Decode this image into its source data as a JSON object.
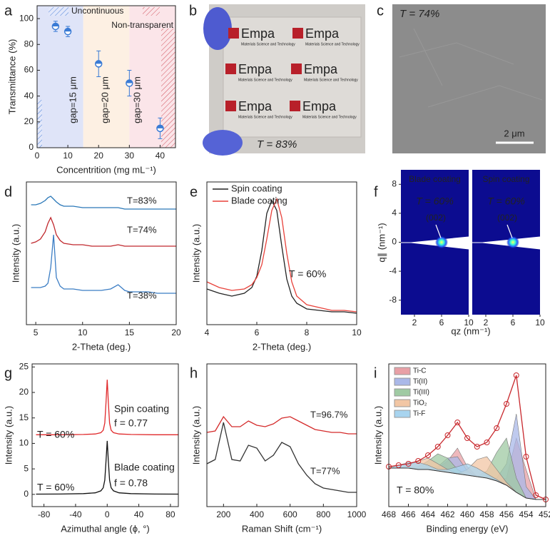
{
  "chart_data": [
    {
      "type": "scatter",
      "panel": "a",
      "xlabel": "Concentrition (mg mL⁻¹)",
      "ylabel": "Transmittance (%)",
      "xlim": [
        0,
        45
      ],
      "ylim": [
        0,
        110
      ],
      "xticks": [
        0,
        10,
        20,
        30,
        40
      ],
      "yticks": [
        0,
        20,
        40,
        60,
        80,
        100
      ],
      "color": "#3a7bd5",
      "x": [
        6,
        10,
        20,
        30,
        40
      ],
      "values": [
        94,
        90,
        65,
        50,
        15
      ],
      "errors": [
        4,
        4,
        10,
        10,
        8
      ],
      "regions": [
        {
          "from": 0,
          "to": 15,
          "color": "#dfe4f8",
          "label": "gap=15 μm",
          "label_color": "#2f6fc9"
        },
        {
          "from": 15,
          "to": 30,
          "color": "#fdf0e3",
          "label": "gap=20 μm",
          "label_color": "#c0731f"
        },
        {
          "from": 30,
          "to": 45,
          "color": "#fbe5e9",
          "label": "gap=30 μm",
          "label_color": "#8e1c6a"
        }
      ],
      "legend": [
        {
          "name": "Uncontinuous",
          "color": "#2f6fc9"
        },
        {
          "name": "Non-transparent",
          "color": "#c8282d"
        }
      ]
    },
    {
      "type": "photo",
      "panel": "b",
      "annotation": "T = 83%",
      "logos": [
        {
          "name": "Empa",
          "tagline": "Materials Science and Technology"
        },
        {
          "name": "Empa",
          "tagline": "Materials Science and Technology"
        },
        {
          "name": "Empa",
          "tagline": "Materials Science and Technology"
        },
        {
          "name": "Empa",
          "tagline": "Materials Science and Technology"
        },
        {
          "name": "Empa",
          "tagline": "Materials Science and Technology"
        },
        {
          "name": "Empa",
          "tagline": "Materials Science and Technology"
        }
      ]
    },
    {
      "type": "micrograph",
      "panel": "c",
      "annotation": "T = 74%",
      "scale_bar": "2 μm"
    },
    {
      "type": "line",
      "panel": "d",
      "xlabel": "2-Theta (deg.)",
      "ylabel": "Intensity (a.u.)",
      "xlim": [
        4,
        20
      ],
      "ylim": [
        0,
        1
      ],
      "xticks": [
        5,
        10,
        15,
        20
      ],
      "x": [
        4.5,
        5,
        5.5,
        6,
        6.3,
        6.6,
        6.9,
        7.2,
        7.6,
        8,
        9,
        10,
        11,
        12,
        13,
        13.8,
        14.5,
        15,
        16,
        17,
        18,
        19,
        20
      ],
      "series": [
        {
          "name": "T=83%",
          "color": "#2a78b8",
          "values": [
            0.84,
            0.84,
            0.85,
            0.87,
            0.89,
            0.9,
            0.88,
            0.86,
            0.84,
            0.83,
            0.83,
            0.82,
            0.82,
            0.82,
            0.82,
            0.82,
            0.81,
            0.81,
            0.81,
            0.81,
            0.81,
            0.81,
            0.81
          ]
        },
        {
          "name": "T=74%",
          "color": "#c0282d",
          "values": [
            0.57,
            0.58,
            0.6,
            0.65,
            0.71,
            0.75,
            0.7,
            0.63,
            0.59,
            0.57,
            0.56,
            0.56,
            0.55,
            0.55,
            0.55,
            0.56,
            0.55,
            0.55,
            0.55,
            0.55,
            0.55,
            0.55,
            0.55
          ]
        },
        {
          "name": "T=38%",
          "color": "#3b7dc4",
          "values": [
            0.26,
            0.26,
            0.26,
            0.27,
            0.29,
            0.4,
            0.63,
            0.33,
            0.27,
            0.25,
            0.25,
            0.24,
            0.24,
            0.24,
            0.25,
            0.28,
            0.24,
            0.23,
            0.23,
            0.23,
            0.22,
            0.22,
            0.22
          ]
        }
      ]
    },
    {
      "type": "line",
      "panel": "e",
      "xlabel": "2-Theta (deg.)",
      "ylabel": "Intensity (a.u.)",
      "xlim": [
        4,
        10
      ],
      "ylim": [
        0,
        1
      ],
      "xticks": [
        4,
        6,
        8,
        10
      ],
      "legend": "upper left",
      "annotations": [
        {
          "text": "T = 60%",
          "color": "#222"
        }
      ],
      "x": [
        4,
        4.5,
        5,
        5.5,
        5.8,
        6,
        6.2,
        6.4,
        6.6,
        6.8,
        7,
        7.2,
        7.4,
        7.6,
        8,
        8.5,
        9,
        9.5,
        10
      ],
      "series": [
        {
          "name": "Spin coating",
          "color": "#222222",
          "values": [
            0.25,
            0.22,
            0.2,
            0.22,
            0.26,
            0.34,
            0.52,
            0.78,
            0.87,
            0.8,
            0.55,
            0.32,
            0.2,
            0.15,
            0.11,
            0.1,
            0.09,
            0.09,
            0.08
          ]
        },
        {
          "name": "Blade coating",
          "color": "#e8413a",
          "values": [
            0.3,
            0.26,
            0.24,
            0.25,
            0.28,
            0.33,
            0.42,
            0.6,
            0.8,
            0.88,
            0.75,
            0.5,
            0.3,
            0.2,
            0.14,
            0.12,
            0.1,
            0.1,
            0.09
          ]
        }
      ]
    },
    {
      "type": "heatmap",
      "panel": "f",
      "xlabel": "qz (nm⁻¹)",
      "ylabel": "q∥ (nm⁻¹)",
      "xlim": [
        0,
        10
      ],
      "ylim": [
        -10,
        10
      ],
      "xticks": [
        2,
        6,
        10
      ],
      "yticks": [
        8,
        4,
        0,
        -4,
        -8
      ],
      "peak_q": [
        6,
        0
      ],
      "images": [
        {
          "title": "Blade coating",
          "annotation": "T = 60%",
          "peak_label": "(002)"
        },
        {
          "title": "Spin coating",
          "annotation": "T = 60%",
          "peak_label": "(002)"
        }
      ]
    },
    {
      "type": "line",
      "panel": "g",
      "xlabel": "Azimuthal angle (ϕ, °)",
      "ylabel": "Intensity (a.u.)",
      "xlim": [
        -95,
        90
      ],
      "ylim": [
        -2.4,
        25.6
      ],
      "xticks": [
        -80,
        -40,
        0,
        40,
        80
      ],
      "yticks": [
        0,
        5,
        10,
        15,
        20,
        25
      ],
      "x": [
        -90,
        -60,
        -30,
        -15,
        -8,
        -5,
        -3,
        -1.5,
        0,
        1.5,
        3,
        5,
        8,
        15,
        30,
        60,
        90
      ],
      "series": [
        {
          "color": "#e0282a",
          "values": [
            11.7,
            11.7,
            11.75,
            11.85,
            12.1,
            12.6,
            14,
            18,
            22.5,
            18,
            14,
            12.6,
            12.1,
            11.85,
            11.75,
            11.7,
            11.7
          ]
        },
        {
          "color": "#111111",
          "values": [
            0.05,
            0.07,
            0.15,
            0.3,
            0.7,
            1.3,
            2.8,
            6.5,
            10.5,
            6.5,
            2.8,
            1.3,
            0.7,
            0.3,
            0.15,
            0.07,
            0.05
          ]
        }
      ],
      "annotations": [
        {
          "text": "Spin coating",
          "color": "#d42a2a"
        },
        {
          "text": "f = 0.77",
          "color": "#d42a2a"
        },
        {
          "text": "T = 60%",
          "color": "#222"
        },
        {
          "text": "Blade coating",
          "color": "#222"
        },
        {
          "text": "f = 0.78",
          "color": "#222"
        },
        {
          "text": "T = 60%",
          "color": "#222"
        }
      ]
    },
    {
      "type": "line",
      "panel": "h",
      "xlabel": "Raman Shift (cm⁻¹)",
      "ylabel": "Intensity (a.u.)",
      "xlim": [
        100,
        1000
      ],
      "ylim": [
        0,
        1
      ],
      "xticks": [
        200,
        400,
        600,
        800,
        1000
      ],
      "x": [
        100,
        150,
        200,
        250,
        300,
        350,
        400,
        450,
        500,
        550,
        600,
        650,
        700,
        750,
        800,
        850,
        900,
        950,
        1000
      ],
      "series": [
        {
          "name": "T=96.7%",
          "color": "#d42a2a",
          "values": [
            0.52,
            0.53,
            0.63,
            0.56,
            0.56,
            0.6,
            0.57,
            0.56,
            0.58,
            0.62,
            0.63,
            0.6,
            0.57,
            0.54,
            0.53,
            0.52,
            0.52,
            0.51,
            0.51
          ]
        },
        {
          "name": "T=77%",
          "color": "#333333",
          "values": [
            0.3,
            0.33,
            0.59,
            0.33,
            0.32,
            0.43,
            0.41,
            0.32,
            0.36,
            0.45,
            0.42,
            0.3,
            0.22,
            0.16,
            0.13,
            0.12,
            0.11,
            0.1,
            0.1
          ]
        }
      ]
    },
    {
      "type": "area",
      "panel": "i",
      "xlabel": "Binding energy (eV)",
      "ylabel": "Intensity (a.u.)",
      "xlim": [
        468,
        452
      ],
      "ylim": [
        0,
        1
      ],
      "xticks": [
        468,
        466,
        464,
        462,
        460,
        458,
        456,
        454,
        452
      ],
      "annotations": [
        {
          "text": "T = 80%",
          "color": "#222"
        }
      ],
      "x": [
        468,
        467,
        466,
        465,
        464,
        463,
        462,
        461,
        460,
        459,
        458,
        457,
        456,
        455,
        454,
        453,
        452
      ],
      "background": [
        0.27,
        0.27,
        0.27,
        0.26,
        0.26,
        0.25,
        0.24,
        0.23,
        0.22,
        0.21,
        0.2,
        0.18,
        0.15,
        0.1,
        0.06,
        0.05,
        0.05
      ],
      "envelope": {
        "color": "#c8282d",
        "values": [
          0.28,
          0.29,
          0.3,
          0.32,
          0.36,
          0.42,
          0.5,
          0.59,
          0.48,
          0.42,
          0.45,
          0.55,
          0.72,
          0.92,
          0.35,
          0.08,
          0.05
        ]
      },
      "series": [
        {
          "name": "Ti-C",
          "color": "#e8a0a6",
          "values": [
            0,
            0,
            0,
            0,
            0,
            0.02,
            0.08,
            0.18,
            0.06,
            0,
            0,
            0,
            0.05,
            0.38,
            0.2,
            0,
            0
          ]
        },
        {
          "name": "Ti(II)",
          "color": "#aab8e8",
          "values": [
            0,
            0,
            0,
            0,
            0,
            0.03,
            0.1,
            0.12,
            0.03,
            0,
            0,
            0.02,
            0.15,
            0.55,
            0.08,
            0,
            0
          ]
        },
        {
          "name": "Ti(III)",
          "color": "#9fcaa3",
          "values": [
            0,
            0,
            0,
            0.02,
            0.06,
            0.12,
            0.1,
            0.03,
            0,
            0,
            0.05,
            0.2,
            0.33,
            0.1,
            0,
            0,
            0
          ]
        },
        {
          "name": "TiO₂",
          "color": "#f2c6a4",
          "values": [
            0,
            0,
            0.02,
            0.06,
            0.08,
            0.05,
            0.02,
            0,
            0.04,
            0.12,
            0.15,
            0.08,
            0.02,
            0,
            0,
            0,
            0
          ]
        },
        {
          "name": "Ti-F",
          "color": "#a8d4ef",
          "values": [
            0,
            0.02,
            0.04,
            0.05,
            0.03,
            0.01,
            0.02,
            0.05,
            0.08,
            0.06,
            0.03,
            0.01,
            0,
            0,
            0,
            0,
            0
          ]
        }
      ]
    }
  ]
}
